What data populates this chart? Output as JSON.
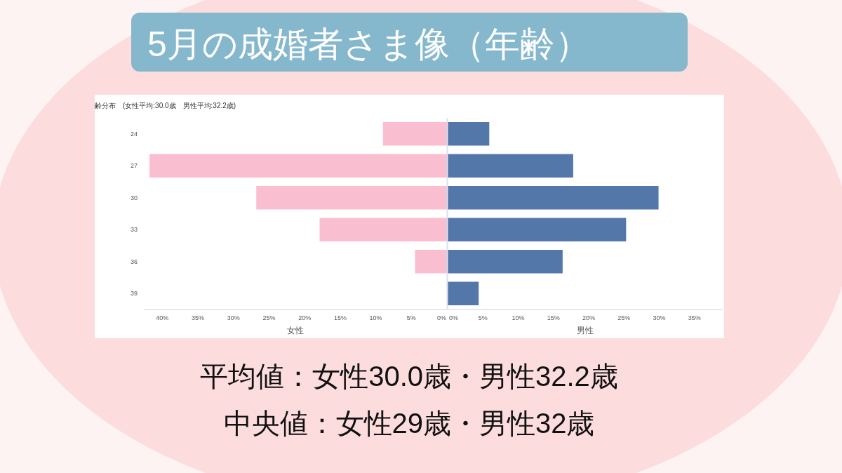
{
  "chart_data": [
    {
      "type": "bar",
      "orientation": "horizontal",
      "title": "5月の成婚者さま像（年齢）",
      "subtitle": "齢分布　(女性平均:30.0歳　男性平均:32.2歳)",
      "categories": [
        "24",
        "27",
        "30",
        "33",
        "36",
        "39"
      ],
      "values": [
        9.0,
        41.8,
        26.8,
        17.9,
        4.5,
        0
      ],
      "color": "#f9bfd0",
      "xlim": [
        42.6,
        0
      ],
      "xlabel": "女性",
      "xticks": [
        {
          "value": 40,
          "label": "40%"
        },
        {
          "value": 35,
          "label": "35%"
        },
        {
          "value": 30,
          "label": "30%"
        },
        {
          "value": 25,
          "label": "25%"
        },
        {
          "value": 20,
          "label": "20%"
        },
        {
          "value": 15,
          "label": "15%"
        },
        {
          "value": 10,
          "label": "10%"
        },
        {
          "value": 5,
          "label": "5%"
        },
        {
          "value": 0,
          "label": "0%"
        }
      ],
      "annotations": [
        "平均値：女性30.0歳・男性32.2歳",
        "中央値：女性29歳・男性32歳"
      ]
    },
    {
      "type": "bar",
      "orientation": "horizontal",
      "tick_labels": "x",
      "categories": [
        "24",
        "27",
        "30",
        "33",
        "36",
        "39"
      ],
      "values": [
        5.9,
        17.8,
        29.9,
        25.3,
        16.3,
        4.4
      ],
      "color": "#5477aa",
      "xlim": [
        0,
        39
      ],
      "xlabel": "男性",
      "xticks": [
        {
          "value": 0,
          "label": "0%"
        },
        {
          "value": 5,
          "label": "5%"
        },
        {
          "value": 10,
          "label": "10%"
        },
        {
          "value": 15,
          "label": "15%"
        },
        {
          "value": 20,
          "label": "20%"
        },
        {
          "value": 25,
          "label": "25%"
        },
        {
          "value": 30,
          "label": "30%"
        },
        {
          "value": 35,
          "label": "35%"
        }
      ]
    }
  ]
}
